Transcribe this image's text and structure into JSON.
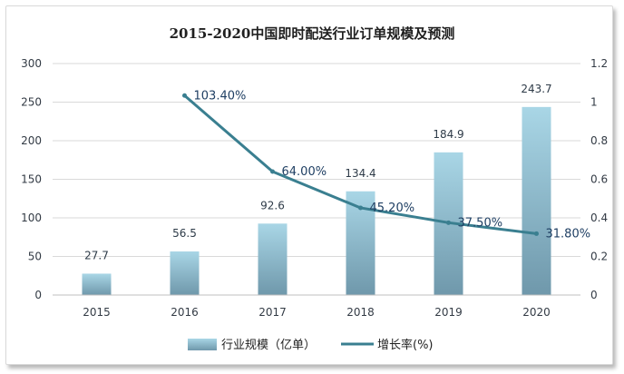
{
  "chart_data": {
    "type": "bar",
    "title": "2015-2020中国即时配送行业订单规模及预测",
    "categories": [
      "2015",
      "2016",
      "2017",
      "2018",
      "2019",
      "2020"
    ],
    "series": [
      {
        "name": "行业规模（亿单）",
        "type": "bar",
        "axis": "left",
        "values": [
          27.7,
          56.5,
          92.6,
          134.4,
          184.9,
          243.7
        ],
        "labels": [
          "27.7",
          "56.5",
          "92.6",
          "134.4",
          "184.9",
          "243.7"
        ],
        "color": "#8fc3d6"
      },
      {
        "name": "增长率(%)",
        "type": "line",
        "axis": "right",
        "values": [
          null,
          1.034,
          0.64,
          0.452,
          0.375,
          0.318
        ],
        "labels": [
          "",
          "103.40%",
          "64.00%",
          "45.20%",
          "37.50%",
          "31.80%"
        ],
        "color": "#3a7f90"
      }
    ],
    "y_left": {
      "min": 0,
      "max": 300,
      "ticks": [
        "0",
        "50",
        "100",
        "150",
        "200",
        "250",
        "300"
      ]
    },
    "y_right": {
      "min": 0,
      "max": 1.2,
      "ticks": [
        "0",
        "0.2",
        "0.4",
        "0.6",
        "0.8",
        "1",
        "1.2"
      ]
    },
    "grid": true,
    "legend_position": "bottom"
  }
}
